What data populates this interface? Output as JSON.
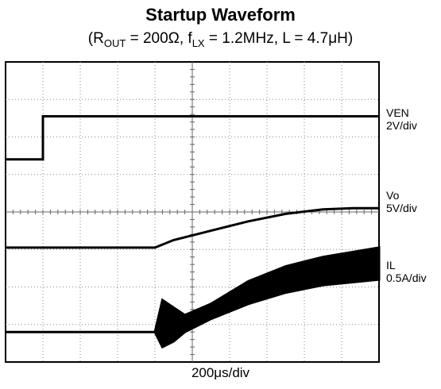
{
  "chart_data": {
    "type": "line",
    "title": "Startup Waveform",
    "subtitle": {
      "r_symbol": "R",
      "r_sub": "OUT",
      "r_value": " = 200Ω, ",
      "f_symbol": "f",
      "f_sub": "LX",
      "f_value": " = 1.2MHz, L = 4.7μH)",
      "open_paren": "("
    },
    "xlabel": "200μs/div",
    "grid": true,
    "divisions": {
      "x": 10,
      "y": 8
    },
    "xlim_div": [
      0,
      10
    ],
    "ylim_div": [
      0,
      8
    ],
    "series": [
      {
        "name": "VEN",
        "scale": "2V/div",
        "color": "#000000",
        "x_div": [
          0,
          1.0,
          1.0,
          10
        ],
        "y_div": [
          5.4,
          5.4,
          6.55,
          6.55
        ]
      },
      {
        "name": "Vo",
        "scale": "5V/div",
        "color": "#000000",
        "x_div": [
          0,
          4.0,
          4.5,
          5.5,
          6.5,
          7.5,
          8.5,
          9.3,
          10
        ],
        "y_div": [
          3.05,
          3.05,
          3.25,
          3.5,
          3.75,
          3.95,
          4.07,
          4.1,
          4.1
        ]
      },
      {
        "name": "IL",
        "scale": "0.5A/div",
        "color": "#000000",
        "x_div": [
          0,
          4.0,
          4.2,
          4.5,
          4.8,
          5.5,
          6.5,
          7.5,
          8.5,
          10
        ],
        "y_min_div": [
          0.8,
          0.8,
          0.4,
          0.55,
          0.8,
          1.15,
          1.55,
          1.85,
          2.05,
          2.2
        ],
        "y_max_div": [
          0.8,
          0.8,
          1.65,
          1.45,
          1.25,
          1.55,
          2.15,
          2.55,
          2.8,
          3.05
        ]
      }
    ]
  }
}
